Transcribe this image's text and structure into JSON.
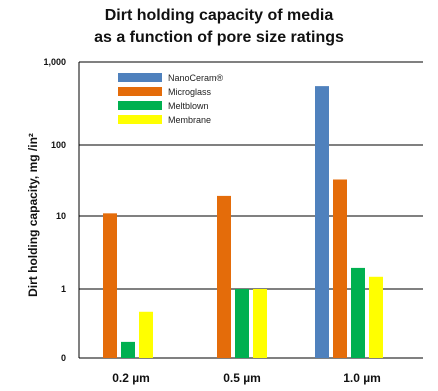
{
  "chart_data": {
    "type": "bar",
    "title": [
      "Dirt holding capacity of media",
      "as a function of pore size ratings"
    ],
    "ylabel": "Dirt holding capacity, mg /in²",
    "yscale": "log",
    "yticks": [
      "0",
      "1",
      "10",
      "100",
      "1,000"
    ],
    "categories": [
      "0.2 µm",
      "0.5 µm",
      "1.0 µm"
    ],
    "series": [
      {
        "name": "NanoCeram®",
        "color": "#4f81bd",
        "values": [
          null,
          null,
          480
        ]
      },
      {
        "name": "Microglass",
        "color": "#e46c0a",
        "values": [
          10,
          17,
          28
        ]
      },
      {
        "name": "Meltblown",
        "color": "#00b050",
        "values": [
          0.2,
          1,
          1.9
        ]
      },
      {
        "name": "Membrane",
        "color": "#ffff00",
        "values": [
          0.5,
          1,
          1.45
        ]
      }
    ],
    "grid": "horizontal",
    "legend": "top-left"
  }
}
